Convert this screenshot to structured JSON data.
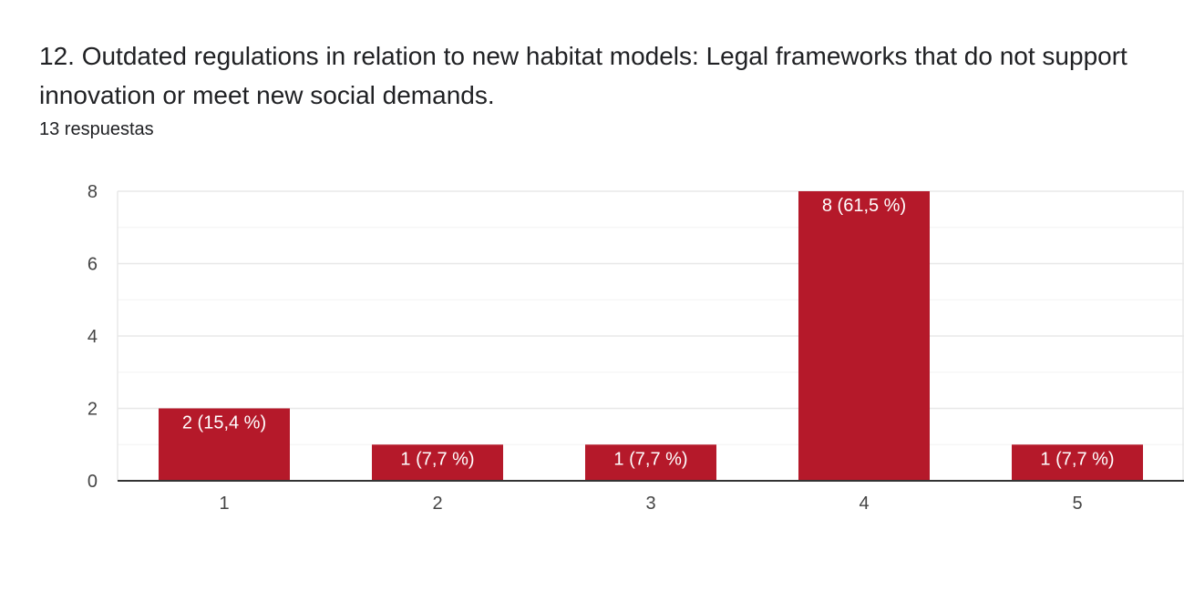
{
  "question": {
    "title": "12.  Outdated regulations in relation to new habitat models: Legal frameworks that do not support innovation or meet new social demands.",
    "response_count": "13 respuestas"
  },
  "colors": {
    "bar": "#b5192a",
    "gridline": "#e8e8e8",
    "minor_gridline": "#f4f4f4",
    "axis": "#333333",
    "text": "#202124"
  },
  "chart_data": {
    "type": "bar",
    "categories": [
      "1",
      "2",
      "3",
      "4",
      "5"
    ],
    "values": [
      2,
      1,
      1,
      8,
      1
    ],
    "data_labels": [
      "2 (15,4 %)",
      "1 (7,7 %)",
      "1 (7,7 %)",
      "8 (61,5 %)",
      "1 (7,7 %)"
    ],
    "y_ticks": [
      "0",
      "2",
      "4",
      "6",
      "8"
    ],
    "ylim": [
      0,
      8
    ],
    "grid": true,
    "legend": "none",
    "xlabel": "",
    "ylabel": ""
  }
}
